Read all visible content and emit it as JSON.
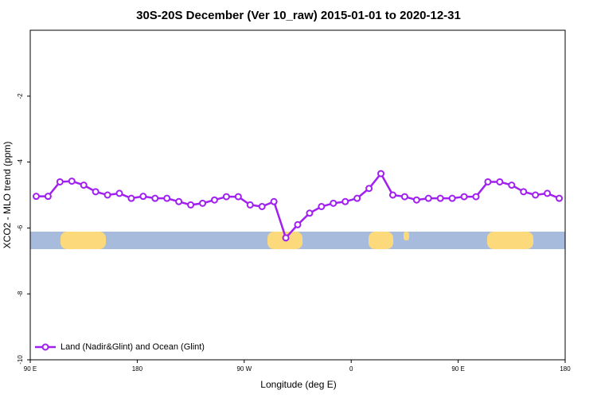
{
  "chart_data": {
    "type": "line",
    "title": "30S-20S December (Ver 10_raw)   2015-01-01 to 2020-12-31",
    "xlabel": "Longitude (deg E)",
    "ylabel": "XCO2 - MLO trend (ppm)",
    "x": [
      95,
      105,
      115,
      125,
      135,
      145,
      155,
      165,
      175,
      185,
      195,
      205,
      215,
      225,
      235,
      245,
      255,
      265,
      275,
      285,
      295,
      305,
      315,
      325,
      335,
      345,
      355,
      365,
      375,
      385,
      395,
      405,
      415,
      425,
      435,
      445,
      455,
      465,
      475,
      485,
      495,
      505,
      515,
      525,
      535
    ],
    "series": [
      {
        "name": "Land (Nadir&Glint) and Ocean (Glint)",
        "color": "#a020f0",
        "values": [
          -5.04,
          -5.04,
          -4.6,
          -4.58,
          -4.7,
          -4.9,
          -5.0,
          -4.95,
          -5.1,
          -5.04,
          -5.1,
          -5.1,
          -5.2,
          -5.3,
          -5.25,
          -5.15,
          -5.05,
          -5.05,
          -5.3,
          -5.35,
          -5.2,
          -6.3,
          -5.9,
          -5.55,
          -5.35,
          -5.25,
          -5.2,
          -5.1,
          -4.8,
          -4.35,
          -5.0,
          -5.05,
          -5.15,
          -5.1,
          -5.1,
          -5.1,
          -5.05,
          -5.05,
          -4.6,
          -4.6,
          -4.7,
          -4.9,
          -5.0,
          -4.95,
          -5.1
        ]
      }
    ],
    "xlim": [
      90,
      540
    ],
    "xticks": [
      {
        "value": 90,
        "label": "90 E"
      },
      {
        "value": 180,
        "label": "180"
      },
      {
        "value": 270,
        "label": "90 W"
      },
      {
        "value": 360,
        "label": "0"
      },
      {
        "value": 450,
        "label": "90 E"
      },
      {
        "value": 540,
        "label": "180"
      }
    ],
    "ylim": [
      -10,
      0
    ],
    "yticks": [
      -10,
      -8,
      -6,
      -4,
      -2
    ],
    "legend": "bottom-left"
  }
}
